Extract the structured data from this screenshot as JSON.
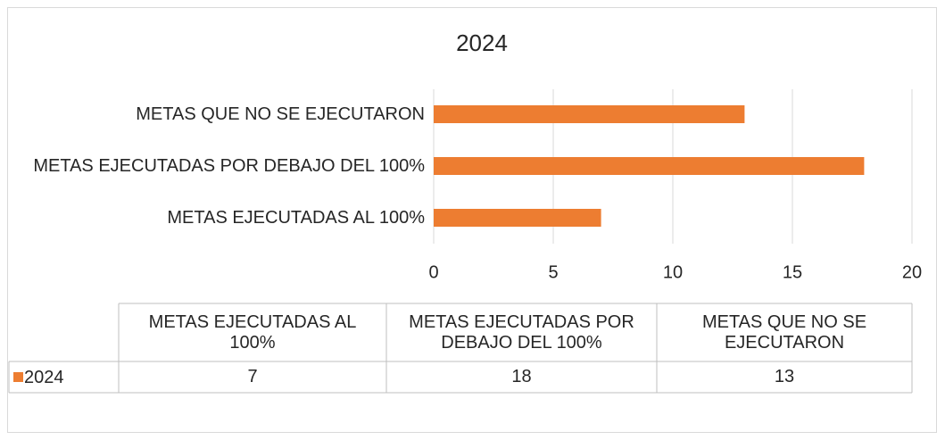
{
  "chart_data": {
    "type": "bar",
    "orientation": "horizontal",
    "title": "2024",
    "categories": [
      "METAS EJECUTADAS AL 100%",
      "METAS EJECUTADAS POR DEBAJO DEL 100%",
      "METAS QUE NO SE EJECUTARON"
    ],
    "series": [
      {
        "name": "2024",
        "color": "#ed7d31",
        "values": [
          7,
          18,
          13
        ]
      }
    ],
    "xlim": [
      0,
      20
    ],
    "xticks": [
      0,
      5,
      10,
      15,
      20
    ],
    "grid": true,
    "data_table": true
  }
}
